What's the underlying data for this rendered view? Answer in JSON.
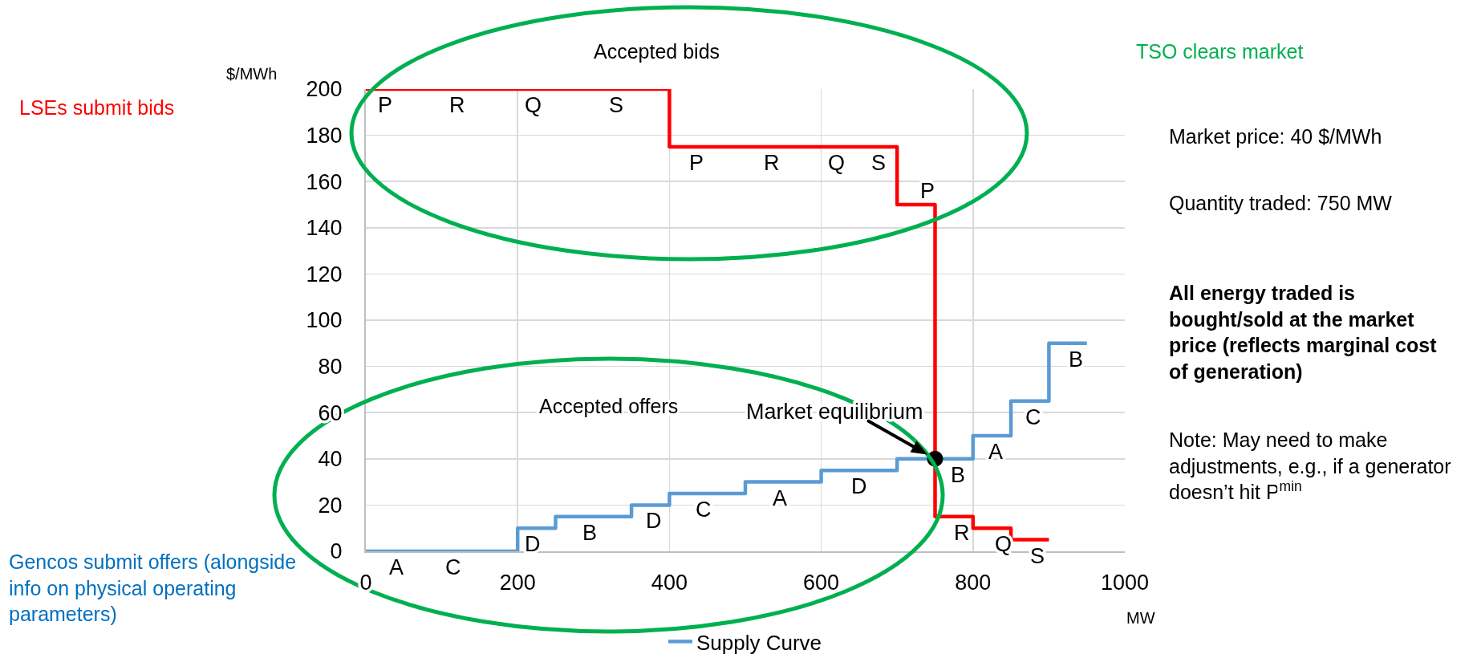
{
  "chart_data": {
    "type": "step",
    "xlabel": "MW",
    "ylabel": "$/MWh",
    "annotations": [
      "Accepted bids",
      "TSO clears market",
      "LSEs submit bids",
      "Market price: 40 $/MWh",
      "Quantity traded: 750 MW",
      "All energy traded is bought/sold at the market price (reflects marginal cost of generation)",
      "Accepted offers",
      "Note: May need to make adjustments, e.g., if a generator doesn’t hit P$^{min}$",
      "Gencos submit offers (alongside info on physical operating parameters)",
      {
        "text": "Market equilibrium",
        "x": 750,
        "y": 40
      },
      {
        "text": "P",
        "x": 25,
        "y": 200
      },
      {
        "text": "R",
        "x": 120,
        "y": 200
      },
      {
        "text": "Q",
        "x": 220,
        "y": 200
      },
      {
        "text": "S",
        "x": 330,
        "y": 200
      },
      {
        "text": "P",
        "x": 435,
        "y": 175
      },
      {
        "text": "R",
        "x": 535,
        "y": 175
      },
      {
        "text": "Q",
        "x": 620,
        "y": 175
      },
      {
        "text": "S",
        "x": 675,
        "y": 175
      },
      {
        "text": "P",
        "x": 740,
        "y": 150
      },
      {
        "text": "R",
        "x": 785,
        "y": 15
      },
      {
        "text": "Q",
        "x": 840,
        "y": 10
      },
      {
        "text": "S",
        "x": 885,
        "y": 5
      },
      {
        "text": "A",
        "x": 40,
        "y": 0
      },
      {
        "text": "C",
        "x": 115,
        "y": 0
      },
      {
        "text": "D",
        "x": 220,
        "y": 10
      },
      {
        "text": "B",
        "x": 295,
        "y": 15
      },
      {
        "text": "D",
        "x": 380,
        "y": 20
      },
      {
        "text": "C",
        "x": 445,
        "y": 25
      },
      {
        "text": "A",
        "x": 545,
        "y": 30
      },
      {
        "text": "D",
        "x": 650,
        "y": 35
      },
      {
        "text": "B",
        "x": 780,
        "y": 40
      },
      {
        "text": "A",
        "x": 830,
        "y": 50
      },
      {
        "text": "C",
        "x": 880,
        "y": 65
      },
      {
        "text": "B",
        "x": 935,
        "y": 90
      }
    ],
    "series": [
      {
        "name": "Supply Curve",
        "color": "#5b9bd5",
        "x": [
          0,
          100,
          200,
          250,
          350,
          400,
          500,
          600,
          700,
          800,
          850,
          900,
          950
        ],
        "values": [
          0,
          0,
          10,
          15,
          20,
          25,
          30,
          35,
          40,
          50,
          65,
          90,
          90
        ]
      },
      {
        "color": "#ff0000",
        "x": [
          0,
          100,
          200,
          300,
          400,
          500,
          600,
          650,
          700,
          750,
          800,
          850,
          900
        ],
        "values": [
          200,
          200,
          200,
          200,
          175,
          175,
          175,
          175,
          150,
          15,
          10,
          5,
          5
        ]
      },
      {
        "type": "scatter",
        "marker": "circle",
        "color": "#000000",
        "x": [
          750
        ],
        "values": [
          40
        ]
      }
    ],
    "xlim": [
      0,
      1000
    ],
    "xticks": [
      0,
      200,
      400,
      600,
      800,
      1000
    ],
    "ylim": [
      0,
      200
    ],
    "yticks": [
      0,
      20,
      40,
      60,
      80,
      100,
      120,
      140,
      160,
      180,
      200
    ],
    "grid": true,
    "legend": "bottom",
    "line_style": "solid"
  }
}
